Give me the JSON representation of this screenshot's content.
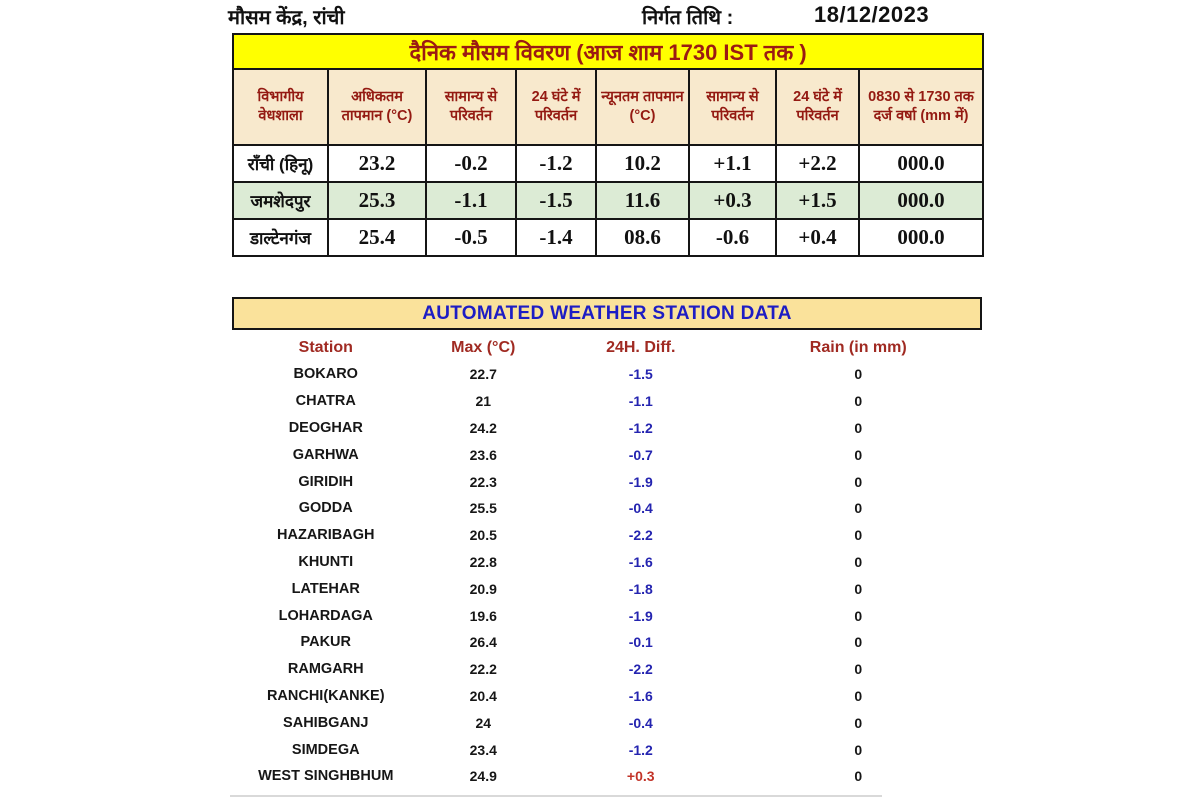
{
  "header": {
    "org_title": "मौसम केंद्र, रांची",
    "issue_date_label": "निर्गत तिथि :",
    "issue_date": "18/12/2023"
  },
  "daily_table": {
    "title": "दैनिक मौसम विवरण (आज शाम 1730 IST तक )",
    "headers": [
      "विभागीय वेधशाला",
      "अधिकतम तापमान (°C)",
      "सामान्य से परिवर्तन",
      "24 घंटे में परिवर्तन",
      "न्यूनतम तापमान (°C)",
      "सामान्य से परिवर्तन",
      "24 घंटे में परिवर्तन",
      "0830 से 1730 तक दर्ज वर्षा (mm में)"
    ],
    "rows": [
      {
        "station": "राँची (हिनू)",
        "max": "23.2",
        "max_normal_diff": "-0.2",
        "max_24h_diff": "-1.2",
        "min": "10.2",
        "min_normal_diff": "+1.1",
        "min_24h_diff": "+2.2",
        "rain": "000.0",
        "highlight": false
      },
      {
        "station": "जमशेदपुर",
        "max": "25.3",
        "max_normal_diff": "-1.1",
        "max_24h_diff": "-1.5",
        "min": "11.6",
        "min_normal_diff": "+0.3",
        "min_24h_diff": "+1.5",
        "rain": "000.0",
        "highlight": true
      },
      {
        "station": "डाल्टेनगंज",
        "max": "25.4",
        "max_normal_diff": "-0.5",
        "max_24h_diff": "-1.4",
        "min": "08.6",
        "min_normal_diff": "-0.6",
        "min_24h_diff": "+0.4",
        "rain": "000.0",
        "highlight": false
      }
    ]
  },
  "aws_table": {
    "title": "AUTOMATED WEATHER STATION DATA",
    "headers": [
      "Station",
      "Max (°C)",
      "24H. Diff.",
      "Rain (in mm)"
    ],
    "rows": [
      {
        "station": "BOKARO",
        "max": "22.7",
        "diff": "-1.5",
        "rain": "0"
      },
      {
        "station": "CHATRA",
        "max": "21",
        "diff": "-1.1",
        "rain": "0"
      },
      {
        "station": "DEOGHAR",
        "max": "24.2",
        "diff": "-1.2",
        "rain": "0"
      },
      {
        "station": "GARHWA",
        "max": "23.6",
        "diff": "-0.7",
        "rain": "0"
      },
      {
        "station": "GIRIDIH",
        "max": "22.3",
        "diff": "-1.9",
        "rain": "0"
      },
      {
        "station": "GODDA",
        "max": "25.5",
        "diff": "-0.4",
        "rain": "0"
      },
      {
        "station": "HAZARIBAGH",
        "max": "20.5",
        "diff": "-2.2",
        "rain": "0"
      },
      {
        "station": "KHUNTI",
        "max": "22.8",
        "diff": "-1.6",
        "rain": "0"
      },
      {
        "station": "LATEHAR",
        "max": "20.9",
        "diff": "-1.8",
        "rain": "0"
      },
      {
        "station": "LOHARDAGA",
        "max": "19.6",
        "diff": "-1.9",
        "rain": "0"
      },
      {
        "station": "PAKUR",
        "max": "26.4",
        "diff": "-0.1",
        "rain": "0"
      },
      {
        "station": "RAMGARH",
        "max": "22.2",
        "diff": "-2.2",
        "rain": "0"
      },
      {
        "station": "RANCHI(KANKE)",
        "max": "20.4",
        "diff": "-1.6",
        "rain": "0"
      },
      {
        "station": "SAHIBGANJ",
        "max": "24",
        "diff": "-0.4",
        "rain": "0"
      },
      {
        "station": "SIMDEGA",
        "max": "23.4",
        "diff": "-1.2",
        "rain": "0"
      },
      {
        "station": "WEST SINGHBHUM",
        "max": "24.9",
        "diff": "+0.3",
        "rain": "0"
      }
    ]
  },
  "colors": {
    "banner_yellow": "#FFFF00",
    "header_cream": "#F8E9CD",
    "aws_banner_gold": "#FAE29B",
    "row_highlight_green": "#DCEBD5",
    "maroon_text": "#941A12",
    "aws_title_blue": "#1D1DC4",
    "diff_negative_blue": "#2424B0",
    "diff_positive_red": "#C23328"
  }
}
